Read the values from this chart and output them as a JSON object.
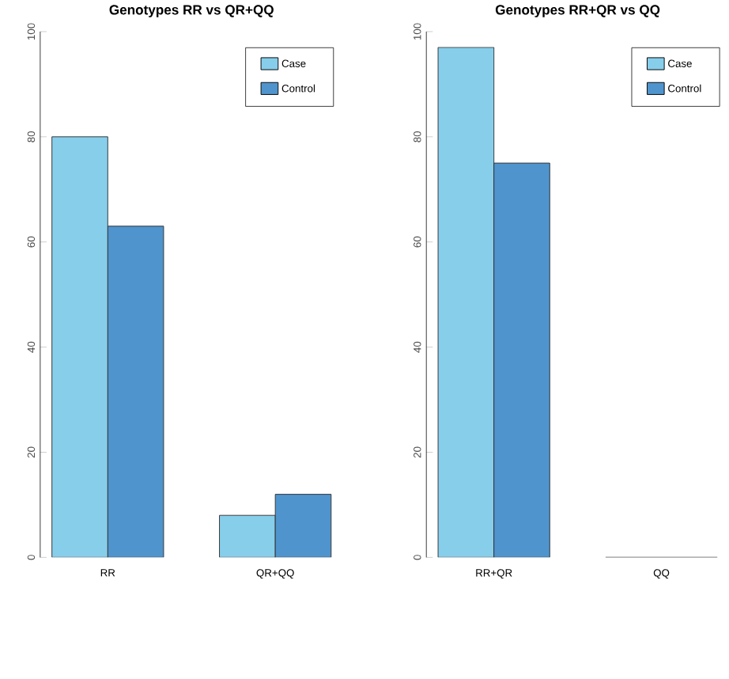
{
  "chart_data": [
    {
      "type": "bar",
      "title": "Genotypes RR vs QR+QQ",
      "categories": [
        "RR",
        "QR+QQ"
      ],
      "series": [
        {
          "name": "Case",
          "color": "#87ceeb",
          "values": [
            80,
            8
          ]
        },
        {
          "name": "Control",
          "color": "#4f94cd",
          "values": [
            63,
            12
          ]
        }
      ],
      "ylim": [
        0,
        100
      ],
      "yticks": [
        0,
        20,
        40,
        60,
        80,
        100
      ],
      "legend": "top right"
    },
    {
      "type": "bar",
      "title": "Genotypes RR+QR vs QQ",
      "categories": [
        "RR+QR",
        "QQ"
      ],
      "series": [
        {
          "name": "Case",
          "color": "#87ceeb",
          "values": [
            97,
            0
          ]
        },
        {
          "name": "Control",
          "color": "#4f94cd",
          "values": [
            75,
            0
          ]
        }
      ],
      "ylim": [
        0,
        100
      ],
      "yticks": [
        0,
        20,
        40,
        60,
        80,
        100
      ],
      "legend": "top right"
    }
  ]
}
